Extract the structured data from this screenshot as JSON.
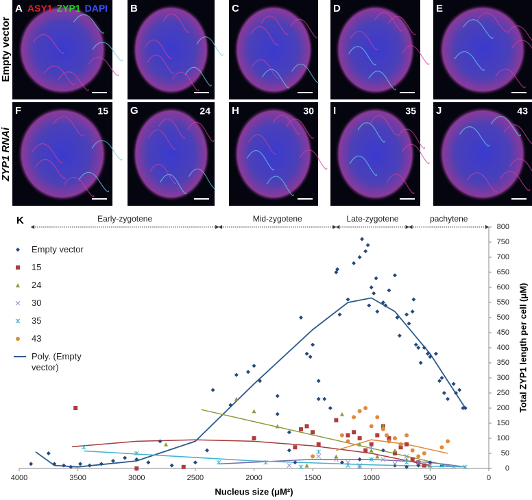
{
  "figure": {
    "stain_labels": [
      {
        "text": "ASY1",
        "color": "#e0202a"
      },
      {
        "text": "ZYP1",
        "color": "#28d028"
      },
      {
        "text": "DAPI",
        "color": "#3a50ff"
      }
    ],
    "rows": [
      {
        "label": "Empty vector",
        "panels": [
          {
            "letter": "A"
          },
          {
            "letter": "B"
          },
          {
            "letter": "C"
          },
          {
            "letter": "D"
          },
          {
            "letter": "E"
          }
        ]
      },
      {
        "label": "ZYP1 RNAi",
        "panels": [
          {
            "letter": "F",
            "number": "15"
          },
          {
            "letter": "G",
            "number": "24"
          },
          {
            "letter": "H",
            "number": "30"
          },
          {
            "letter": "I",
            "number": "35"
          },
          {
            "letter": "J",
            "number": "43"
          }
        ]
      }
    ]
  },
  "chart_data": {
    "type": "scatter",
    "label": "K",
    "xlabel": "Nucleus size (μM²)",
    "ylabel": "Total ZYP1 length per cell (μM)",
    "xlim": [
      4000,
      0
    ],
    "xticks": [
      4000,
      3500,
      3000,
      2500,
      2000,
      1500,
      1000,
      500,
      0
    ],
    "ylim": [
      0,
      800
    ],
    "yticks": [
      0,
      50,
      100,
      150,
      200,
      250,
      300,
      350,
      400,
      450,
      500,
      550,
      600,
      650,
      700,
      750,
      800
    ],
    "stages": [
      {
        "label": "Early-zygotene",
        "from": 3900,
        "to": 2300
      },
      {
        "label": "Mid-zygotene",
        "from": 2300,
        "to": 1300
      },
      {
        "label": "Late-zygotene",
        "from": 1300,
        "to": 680
      },
      {
        "label": "pachytene",
        "from": 680,
        "to": 0
      }
    ],
    "series": [
      {
        "name": "Empty vector",
        "color": "#244a7c",
        "marker": "diamond",
        "x": [
          3900,
          3750,
          3700,
          3620,
          3560,
          3480,
          3400,
          3300,
          3200,
          3100,
          3000,
          2900,
          2800,
          2700,
          2600,
          2500,
          2400,
          2350,
          2200,
          2150,
          2050,
          2000,
          1950,
          1800,
          1700,
          1600,
          1550,
          1520,
          1500,
          1450,
          1400,
          1350,
          1300,
          1290,
          1270,
          1200,
          1150,
          1100,
          1080,
          1050,
          1030,
          1000,
          980,
          960,
          950,
          900,
          850,
          800,
          780,
          760,
          700,
          680,
          650,
          620,
          600,
          580,
          550,
          520,
          500,
          450,
          420,
          400,
          380,
          350,
          300,
          280,
          250,
          220,
          200,
          1800,
          1700,
          1650,
          1500,
          1250,
          1100,
          900,
          800,
          700,
          600,
          500,
          400,
          1450,
          1020,
          880,
          640
        ],
        "values": [
          15,
          50,
          15,
          10,
          5,
          15,
          10,
          15,
          25,
          35,
          30,
          20,
          90,
          10,
          5,
          20,
          60,
          260,
          210,
          310,
          320,
          340,
          290,
          180,
          120,
          500,
          380,
          370,
          410,
          290,
          230,
          200,
          650,
          660,
          510,
          560,
          680,
          700,
          760,
          720,
          740,
          600,
          580,
          630,
          520,
          550,
          590,
          640,
          500,
          440,
          510,
          480,
          520,
          410,
          400,
          350,
          400,
          380,
          370,
          380,
          290,
          300,
          250,
          230,
          280,
          250,
          260,
          200,
          200,
          240,
          60,
          20,
          120,
          20,
          30,
          60,
          10,
          5,
          10,
          20,
          10,
          230,
          540,
          540,
          560
        ]
      },
      {
        "name": "15",
        "color": "#b23c3c",
        "marker": "square",
        "x": [
          3520,
          2600,
          1650,
          1600,
          1550,
          1500,
          1450,
          1300,
          1200,
          1150,
          1100,
          1050,
          1000,
          950,
          900,
          850,
          800,
          750,
          700,
          650,
          600,
          550,
          3000,
          2000
        ],
        "values": [
          200,
          5,
          70,
          130,
          140,
          120,
          80,
          160,
          110,
          120,
          100,
          60,
          80,
          110,
          140,
          100,
          50,
          70,
          80,
          30,
          20,
          10,
          0,
          100
        ]
      },
      {
        "name": "24",
        "color": "#8c9c3e",
        "marker": "triangle",
        "x": [
          2750,
          2150,
          2000,
          1800,
          1550,
          1300,
          1250,
          1100,
          1000,
          950,
          900,
          800,
          700,
          500
        ],
        "values": [
          80,
          230,
          190,
          140,
          10,
          40,
          180,
          80,
          60,
          40,
          140,
          60,
          30,
          10
        ]
      },
      {
        "name": "30",
        "color": "#9090c8",
        "marker": "cross",
        "x": [
          1700,
          1450,
          1300,
          1200,
          1100,
          1000,
          900,
          800,
          700,
          600,
          500,
          300
        ],
        "values": [
          10,
          40,
          30,
          20,
          10,
          70,
          30,
          15,
          40,
          20,
          10,
          5
        ]
      },
      {
        "name": "35",
        "color": "#40b4d0",
        "marker": "star",
        "x": [
          3450,
          3000,
          2300,
          1900,
          1600,
          1450,
          1200,
          1100,
          1000,
          700,
          400,
          200
        ],
        "values": [
          70,
          50,
          20,
          20,
          5,
          55,
          10,
          5,
          30,
          20,
          10,
          5
        ]
      },
      {
        "name": "43",
        "color": "#e08a3c",
        "marker": "circle",
        "x": [
          1500,
          1250,
          1200,
          1150,
          1100,
          1050,
          1000,
          950,
          900,
          870,
          850,
          800,
          750,
          700,
          650,
          600,
          550,
          400,
          350
        ],
        "values": [
          40,
          110,
          90,
          170,
          190,
          200,
          140,
          170,
          130,
          110,
          90,
          100,
          80,
          110,
          60,
          40,
          50,
          70,
          90
        ]
      }
    ],
    "trendlines": [
      {
        "name": "Poly. (Empty vector)",
        "color": "#2e5a8c",
        "x": [
          3860,
          3700,
          3500,
          3000,
          2500,
          2000,
          1500,
          1200,
          1000,
          800,
          500,
          200
        ],
        "values": [
          55,
          10,
          5,
          25,
          90,
          280,
          460,
          550,
          565,
          520,
          380,
          200
        ]
      },
      {
        "color": "#a83a3a",
        "x": [
          3550,
          3000,
          2500,
          2000,
          1500,
          1000,
          500
        ],
        "values": [
          72,
          90,
          95,
          90,
          75,
          50,
          10
        ]
      },
      {
        "color": "#8c9c3e",
        "x": [
          2450,
          300
        ],
        "values": [
          195,
          5
        ]
      },
      {
        "color": "#7a6aa8",
        "x": [
          2300,
          1500,
          1000,
          500,
          200
        ],
        "values": [
          15,
          30,
          30,
          20,
          5
        ]
      },
      {
        "color": "#40b4d0",
        "x": [
          3450,
          2000,
          1000,
          200
        ],
        "values": [
          58,
          25,
          12,
          5
        ]
      },
      {
        "color": "#e08a3c",
        "x": [
          1300,
          1000,
          700,
          350
        ],
        "values": [
          60,
          95,
          80,
          50
        ]
      }
    ]
  }
}
